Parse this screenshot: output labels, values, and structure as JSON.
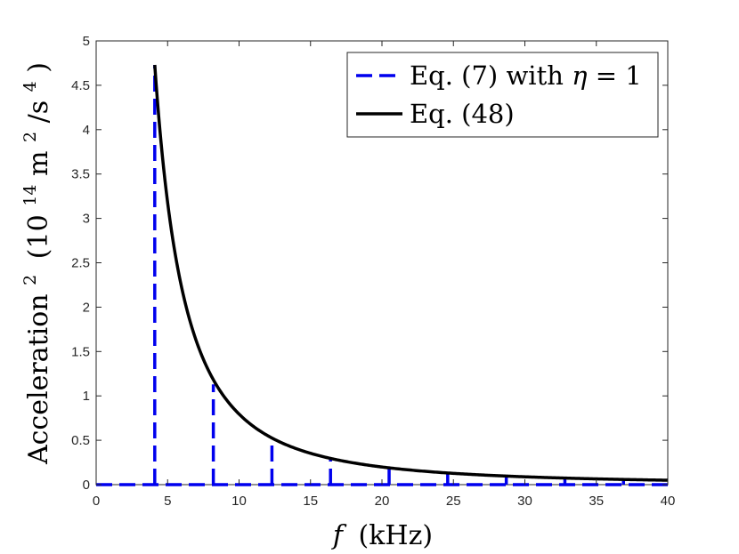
{
  "chart_data": {
    "type": "line",
    "xlabel": {
      "var": "f",
      "unit": "(kHz)"
    },
    "ylabel": {
      "base": "Acceleration",
      "exp": "2",
      "open": "(10",
      "exp2": "14",
      "unit": "m",
      "exp3": "2",
      "per": "/s",
      "exp4": "4",
      "close": ")"
    },
    "xlim": [
      0,
      40
    ],
    "ylim": [
      0,
      5
    ],
    "xticks": [
      "0",
      "5",
      "10",
      "15",
      "20",
      "25",
      "30",
      "35",
      "40"
    ],
    "yticks": [
      "0",
      "0.5",
      "1",
      "1.5",
      "2",
      "2.5",
      "3",
      "3.5",
      "4",
      "4.5",
      "5"
    ],
    "grid": false,
    "legend_position": "top-right",
    "colors": {
      "dashed": "#0000ee",
      "solid": "#000000",
      "axis": "#262626"
    },
    "series": [
      {
        "name": "Eq. (7) with η = 1",
        "name_parts": {
          "text": "Eq. (7) with ",
          "sym": "η",
          "rest": " = 1"
        },
        "style": "dashed",
        "stems": [
          {
            "x": 4.1,
            "y": 4.73
          },
          {
            "x": 8.2,
            "y": 1.13
          },
          {
            "x": 12.3,
            "y": 0.5
          },
          {
            "x": 16.4,
            "y": 0.28
          },
          {
            "x": 20.5,
            "y": 0.18
          },
          {
            "x": 24.6,
            "y": 0.13
          },
          {
            "x": 28.7,
            "y": 0.09
          },
          {
            "x": 32.8,
            "y": 0.07
          },
          {
            "x": 36.9,
            "y": 0.05
          }
        ]
      },
      {
        "name": "Eq. (48)",
        "style": "solid",
        "curve": {
          "x_start": 4.1,
          "x_end": 40,
          "coefficient": 79.5,
          "power": 2
        }
      }
    ]
  }
}
